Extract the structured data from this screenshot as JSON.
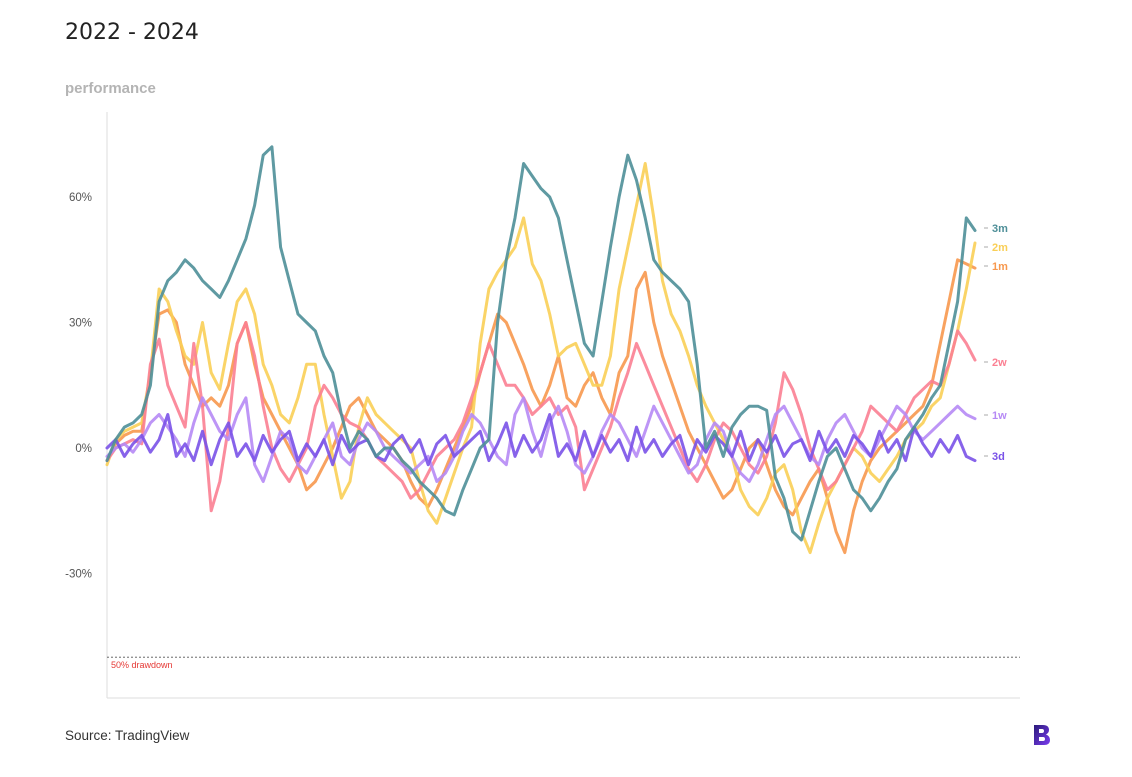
{
  "title": "2022 - 2024",
  "subtitle": "performance",
  "source": "Source: TradingView",
  "logo": "brand-logo",
  "chart_data": {
    "type": "line",
    "title": "2022 - 2024",
    "ylabel": "performance",
    "xlabel": "",
    "ylim": [
      -60,
      80
    ],
    "yticks": [
      {
        "value": 60,
        "label": "60%"
      },
      {
        "value": 30,
        "label": "30%"
      },
      {
        "value": 0,
        "label": "0%"
      },
      {
        "value": -30,
        "label": "-30%"
      }
    ],
    "grid": false,
    "legend": "end-of-line labels (right)",
    "reference_line": {
      "y": -50,
      "label": "50% drawdown",
      "color": "#e53935"
    },
    "x": [
      0,
      1,
      2,
      3,
      4,
      5,
      6,
      7,
      8,
      9,
      10,
      11,
      12,
      13,
      14,
      15,
      16,
      17,
      18,
      19,
      20,
      21,
      22,
      23,
      24,
      25,
      26,
      27,
      28,
      29,
      30,
      31,
      32,
      33,
      34,
      35,
      36,
      37,
      38,
      39,
      40,
      41,
      42,
      43,
      44,
      45,
      46,
      47,
      48,
      49,
      50,
      51,
      52,
      53,
      54,
      55,
      56,
      57,
      58,
      59,
      60,
      61,
      62,
      63,
      64,
      65,
      66,
      67,
      68,
      69,
      70,
      71,
      72,
      73,
      74,
      75,
      76,
      77,
      78,
      79,
      80,
      81,
      82,
      83,
      84,
      85,
      86,
      87,
      88,
      89,
      90,
      91,
      92,
      93,
      94,
      95,
      96,
      97,
      98,
      99,
      100
    ],
    "series": [
      {
        "name": "3m",
        "color": "#4e8f98",
        "values": [
          -3,
          2,
          5,
          6,
          8,
          15,
          35,
          40,
          42,
          45,
          43,
          40,
          38,
          36,
          40,
          45,
          50,
          58,
          70,
          72,
          48,
          40,
          32,
          30,
          28,
          22,
          18,
          8,
          0,
          4,
          2,
          -2,
          0,
          0,
          -3,
          -5,
          -8,
          -10,
          -12,
          -15,
          -16,
          -10,
          -5,
          0,
          2,
          30,
          45,
          55,
          68,
          65,
          62,
          60,
          55,
          45,
          35,
          25,
          22,
          35,
          48,
          60,
          70,
          64,
          55,
          45,
          42,
          40,
          38,
          35,
          20,
          0,
          4,
          -2,
          5,
          8,
          10,
          10,
          9,
          -7,
          -12,
          -20,
          -22,
          -15,
          -8,
          -2,
          0,
          -5,
          -10,
          -12,
          -15,
          -12,
          -8,
          -5,
          2,
          5,
          8,
          12,
          15,
          25,
          35,
          55,
          52
        ]
      },
      {
        "name": "2m",
        "color": "#f9cf57",
        "values": [
          -4,
          2,
          4,
          5,
          6,
          18,
          38,
          35,
          28,
          22,
          20,
          30,
          18,
          14,
          25,
          35,
          38,
          32,
          20,
          15,
          8,
          6,
          12,
          20,
          20,
          8,
          -2,
          -12,
          -8,
          5,
          12,
          8,
          6,
          4,
          2,
          0,
          -8,
          -15,
          -18,
          -12,
          -6,
          0,
          5,
          25,
          38,
          42,
          45,
          48,
          55,
          44,
          40,
          32,
          22,
          24,
          25,
          20,
          15,
          15,
          22,
          38,
          48,
          58,
          68,
          55,
          40,
          32,
          28,
          22,
          15,
          10,
          6,
          2,
          -2,
          -10,
          -14,
          -16,
          -12,
          -6,
          -4,
          -10,
          -20,
          -25,
          -18,
          -12,
          -8,
          -4,
          0,
          -2,
          -6,
          -8,
          -5,
          -2,
          2,
          4,
          6,
          10,
          12,
          20,
          28,
          38,
          49
        ]
      },
      {
        "name": "1m",
        "color": "#f7984e",
        "values": [
          -3,
          1,
          3,
          4,
          4,
          18,
          32,
          33,
          30,
          20,
          15,
          10,
          12,
          10,
          15,
          25,
          30,
          20,
          12,
          8,
          4,
          0,
          -4,
          -10,
          -8,
          -4,
          0,
          5,
          10,
          12,
          8,
          4,
          2,
          0,
          -3,
          -8,
          -12,
          -14,
          -10,
          -5,
          0,
          5,
          10,
          18,
          25,
          32,
          30,
          25,
          20,
          14,
          10,
          15,
          22,
          12,
          10,
          15,
          18,
          12,
          8,
          18,
          22,
          38,
          42,
          30,
          22,
          16,
          10,
          4,
          0,
          -4,
          -8,
          -12,
          -10,
          -5,
          0,
          2,
          -4,
          -10,
          -14,
          -16,
          -12,
          -8,
          -5,
          -12,
          -20,
          -25,
          -15,
          -8,
          -3,
          0,
          2,
          4,
          6,
          8,
          10,
          15,
          25,
          35,
          45,
          44,
          43
        ]
      },
      {
        "name": "2w",
        "color": "#fb7f92",
        "values": [
          -3,
          0,
          1,
          2,
          1,
          20,
          26,
          15,
          10,
          5,
          25,
          10,
          -15,
          -8,
          5,
          25,
          30,
          22,
          10,
          0,
          -5,
          -8,
          -4,
          0,
          10,
          15,
          12,
          8,
          6,
          5,
          2,
          -2,
          -4,
          -6,
          -8,
          -12,
          -10,
          -6,
          -2,
          0,
          2,
          6,
          12,
          18,
          25,
          20,
          15,
          15,
          12,
          8,
          10,
          12,
          8,
          10,
          5,
          -10,
          -5,
          0,
          5,
          12,
          18,
          25,
          20,
          15,
          10,
          5,
          0,
          -5,
          -8,
          -4,
          2,
          6,
          4,
          0,
          -4,
          -6,
          -2,
          6,
          18,
          14,
          8,
          0,
          -5,
          -10,
          -8,
          -4,
          0,
          4,
          10,
          8,
          6,
          4,
          8,
          12,
          14,
          16,
          15,
          20,
          28,
          25,
          21
        ]
      },
      {
        "name": "1w",
        "color": "#b68af5",
        "values": [
          -2,
          0,
          1,
          -1,
          2,
          6,
          8,
          5,
          2,
          -2,
          6,
          12,
          8,
          4,
          2,
          8,
          12,
          -4,
          -8,
          -2,
          4,
          2,
          -4,
          -6,
          -2,
          2,
          6,
          -2,
          -4,
          2,
          6,
          4,
          0,
          -2,
          -4,
          -6,
          -4,
          -2,
          -8,
          -6,
          -2,
          4,
          8,
          6,
          2,
          -2,
          -4,
          8,
          12,
          4,
          -2,
          6,
          10,
          4,
          -4,
          -6,
          -2,
          4,
          8,
          6,
          2,
          -2,
          4,
          10,
          6,
          2,
          -2,
          -6,
          -4,
          2,
          6,
          4,
          -2,
          -6,
          -8,
          -4,
          2,
          8,
          10,
          6,
          2,
          -2,
          -4,
          2,
          6,
          8,
          4,
          0,
          -2,
          2,
          6,
          10,
          8,
          4,
          2,
          4,
          6,
          8,
          10,
          8,
          7
        ]
      },
      {
        "name": "3d",
        "color": "#7a52e8",
        "values": [
          0,
          2,
          -2,
          1,
          3,
          -1,
          2,
          8,
          -2,
          1,
          -3,
          4,
          -4,
          2,
          6,
          -2,
          1,
          -3,
          3,
          -1,
          2,
          4,
          -3,
          1,
          -2,
          2,
          -4,
          3,
          -1,
          1,
          2,
          -2,
          -3,
          1,
          3,
          -1,
          2,
          -4,
          1,
          3,
          -2,
          0,
          2,
          4,
          -3,
          1,
          6,
          -2,
          3,
          -1,
          2,
          8,
          -2,
          1,
          -3,
          4,
          -2,
          3,
          -1,
          2,
          -3,
          5,
          -1,
          2,
          -2,
          1,
          3,
          -4,
          2,
          -1,
          3,
          1,
          -2,
          4,
          -3,
          2,
          -1,
          3,
          -2,
          1,
          2,
          -3,
          4,
          -1,
          2,
          -2,
          3,
          1,
          -2,
          4,
          -1,
          2,
          -3,
          5,
          1,
          -2,
          2,
          -1,
          3,
          -2,
          -3
        ]
      }
    ],
    "end_labels": [
      "3m",
      "2m",
      "1m",
      "2w",
      "1w",
      "3d"
    ]
  }
}
